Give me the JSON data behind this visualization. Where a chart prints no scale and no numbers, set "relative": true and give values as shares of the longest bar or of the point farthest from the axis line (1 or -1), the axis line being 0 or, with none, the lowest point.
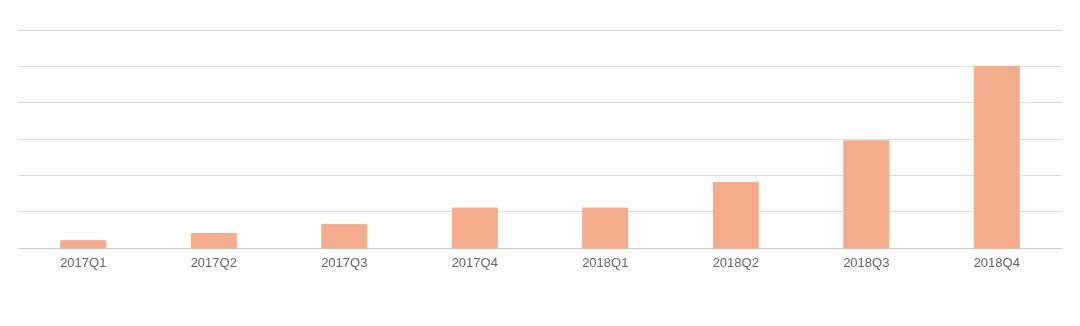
{
  "chart_data": {
    "type": "bar",
    "relative": true,
    "categories": [
      "2017Q1",
      "2017Q2",
      "2017Q3",
      "2017Q4",
      "2018Q1",
      "2018Q2",
      "2018Q3",
      "2018Q4"
    ],
    "values": [
      0.04,
      0.08,
      0.13,
      0.22,
      0.22,
      0.36,
      0.59,
      1
    ],
    "color": "#f5ac8d",
    "grid": "y"
  }
}
